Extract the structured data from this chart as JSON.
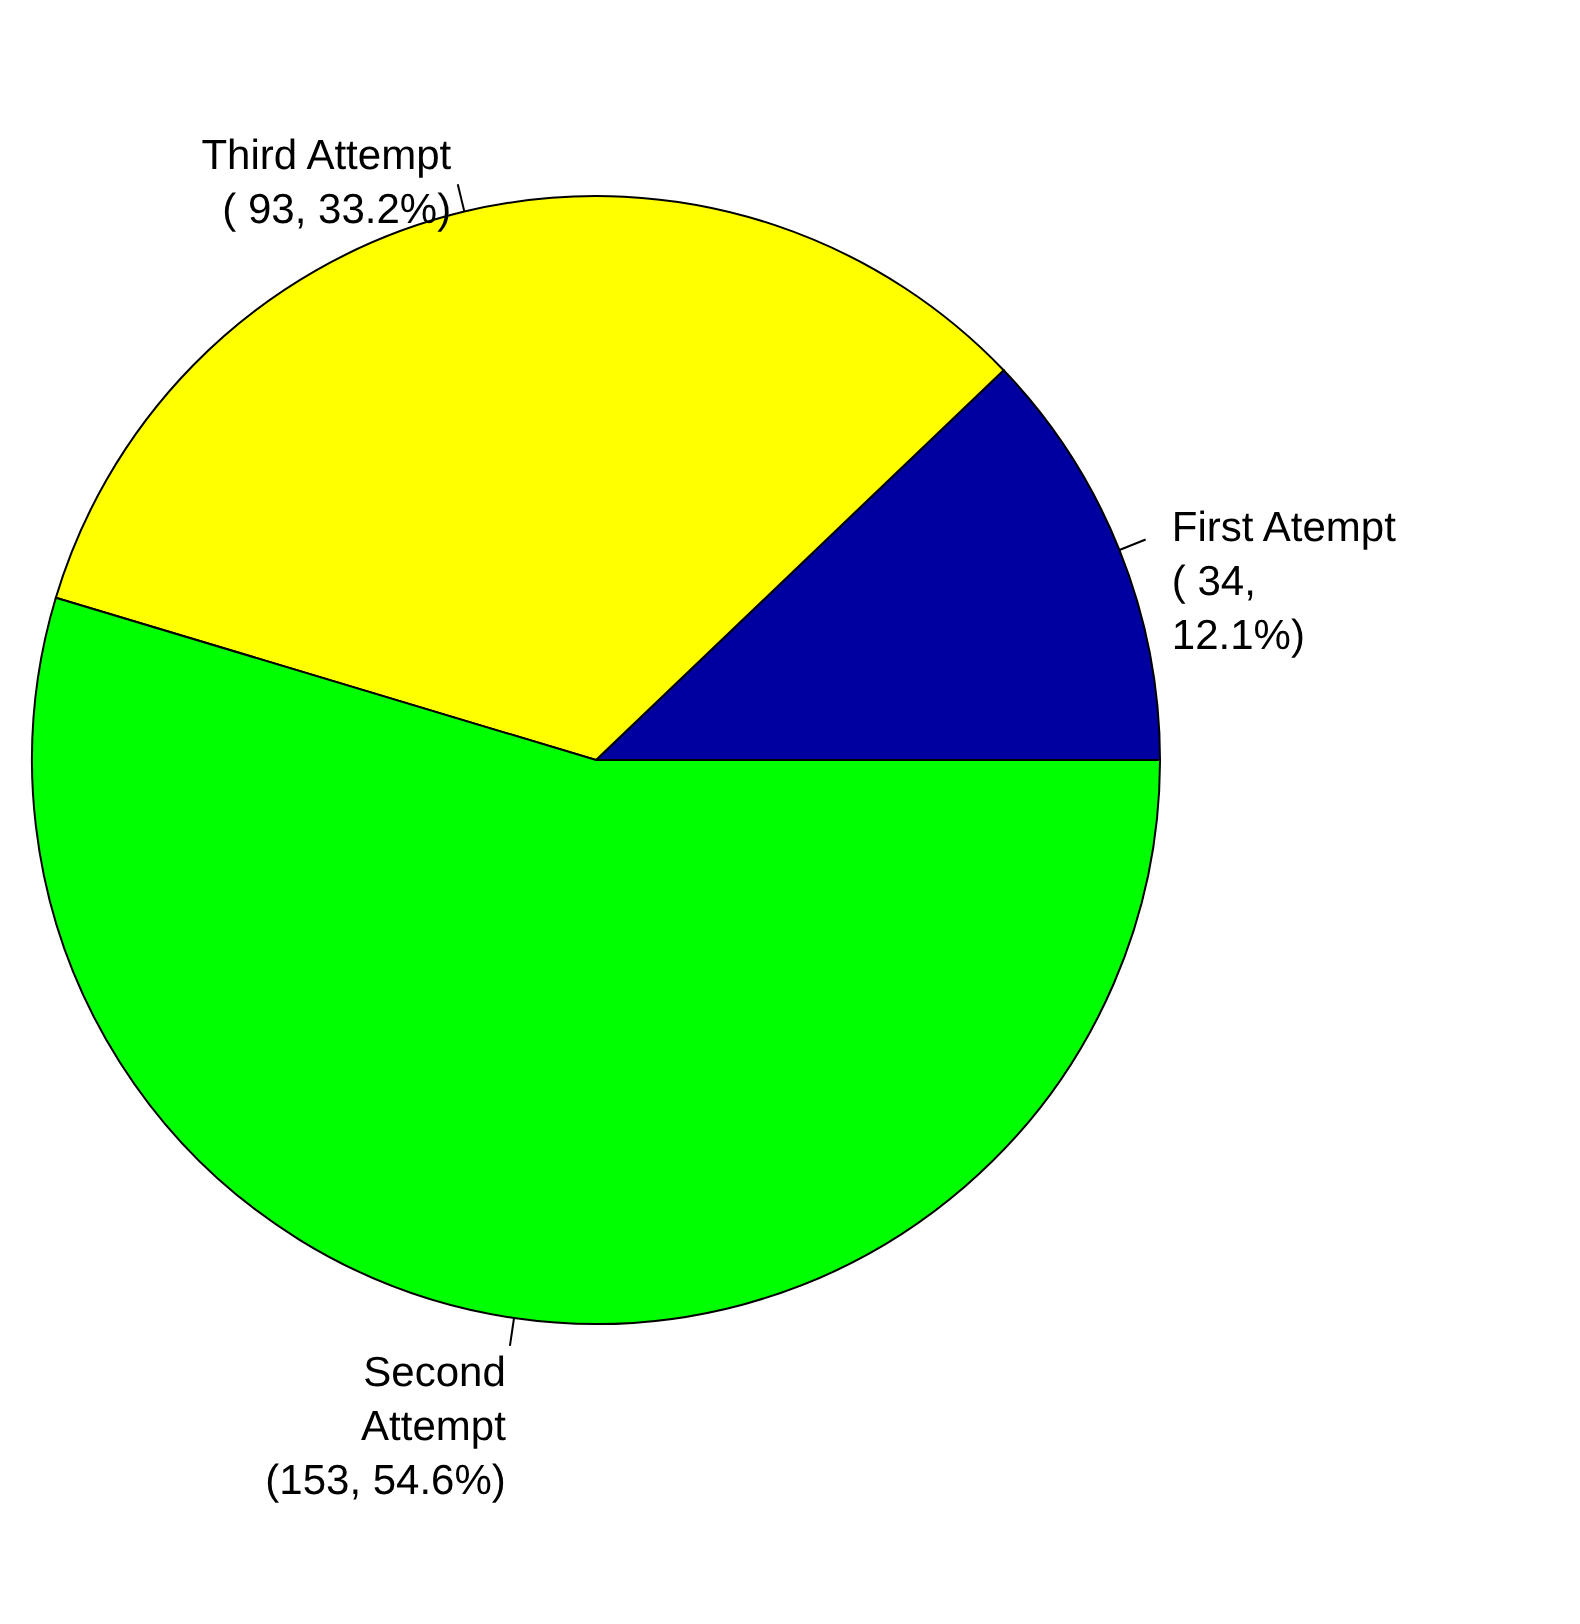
{
  "chart_data": {
    "type": "pie",
    "categories": [
      "First Atempt",
      "Third Attempt",
      "Second\nAttempt"
    ],
    "values": [
      34,
      93,
      153
    ],
    "value_labels": [
      "( 34,\n12.1%)",
      "( 93, 33.2%)",
      "(153, 54.6%)"
    ],
    "colors": [
      "#0000a0",
      "#ffff00",
      "#00ff00"
    ],
    "legend": false
  }
}
